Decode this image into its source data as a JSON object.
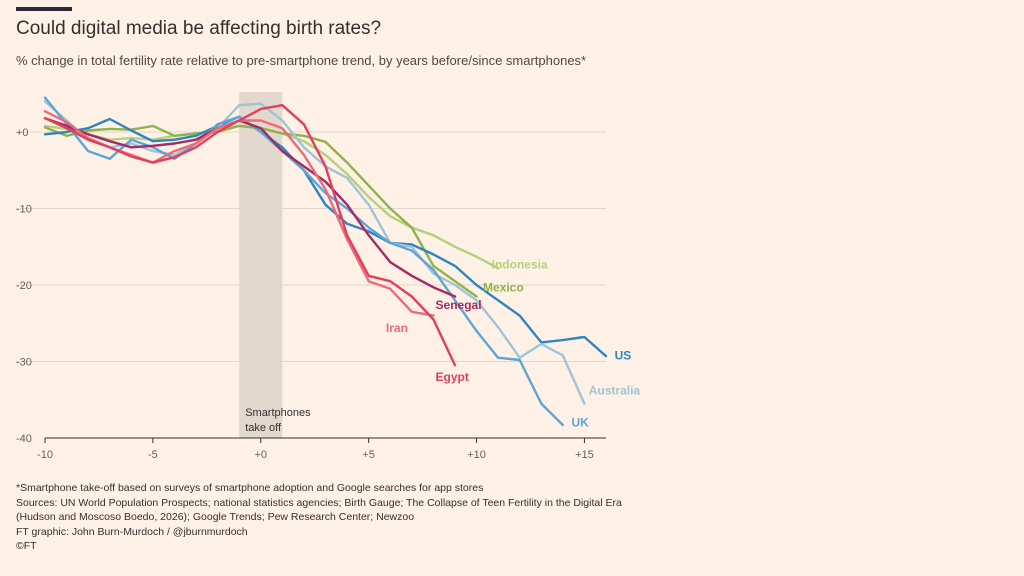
{
  "header": {
    "title": "Could digital media be affecting birth rates?",
    "subtitle": "% change in total fertility rate relative to pre-smartphone trend, by years before/since smartphones*"
  },
  "footer": {
    "note": "*Smartphone take-off based on surveys of smartphone adoption and Google searches for app stores",
    "sources_1": "Sources: UN World Population Prospects; national statistics agencies; Birth Gauge; The Collapse of Teen Fertility in the Digital Era",
    "sources_2": "(Hudson and Moscoso Boedo, 2026); Google Trends; Pew Research Center; Newzoo",
    "credit": "FT graphic: John Burn-Murdoch / @jburnmurdoch",
    "copyright": "©FT"
  },
  "chart_data": {
    "type": "line",
    "title": "Could digital media be affecting birth rates?",
    "subtitle": "% change in total fertility rate relative to pre-smartphone trend, by years before/since smartphones*",
    "xlim": [
      -10,
      16
    ],
    "ylim": [
      -40,
      5
    ],
    "x_ticks": [
      -10,
      -5,
      0,
      5,
      10,
      15
    ],
    "x_tick_labels": [
      "-10",
      "-5",
      "+0",
      "+5",
      "+10",
      "+15"
    ],
    "y_ticks": [
      0,
      -10,
      -20,
      -30,
      -40
    ],
    "y_tick_labels": [
      "+0",
      "-10",
      "-20",
      "-30",
      "-40"
    ],
    "grid": "horizontal",
    "annotation_band": {
      "x_from": -1,
      "x_to": 1,
      "label_lines": [
        "Smartphones",
        "take off"
      ],
      "color": "#e3d8ce"
    },
    "series": [
      {
        "name": "Indonesia",
        "color": "#b5d07a",
        "x": [
          -10,
          -9,
          -8,
          -7,
          -6,
          -5,
          -4,
          -3,
          -2,
          -1,
          0,
          1,
          2,
          3,
          4,
          5,
          6,
          7,
          8,
          9,
          10,
          11
        ],
        "y": [
          0.8,
          0.4,
          -0.3,
          -1.0,
          -0.8,
          -1.0,
          -0.5,
          -0.2,
          0.3,
          0.8,
          0.5,
          -0.2,
          -1.2,
          -3,
          -5.5,
          -8.5,
          -11,
          -12.5,
          -13.5,
          -15,
          -16.3,
          -17.8
        ]
      },
      {
        "name": "Mexico",
        "color": "#8eb348",
        "x": [
          -10,
          -9,
          -8,
          -7,
          -6,
          -5,
          -4,
          -3,
          -2,
          -1,
          0,
          1,
          2,
          3,
          4,
          5,
          6,
          7,
          8,
          9,
          10
        ],
        "y": [
          0.6,
          -0.5,
          0.2,
          0.4,
          0.3,
          0.8,
          -0.5,
          -0.2,
          0,
          0.8,
          0.5,
          -0.2,
          -0.5,
          -1.3,
          -4,
          -7,
          -10,
          -12.5,
          -17.5,
          -19.5,
          -21.5
        ]
      },
      {
        "name": "US",
        "color": "#2e86c1",
        "x": [
          -10,
          -9,
          -8,
          -7,
          -6,
          -5,
          -4,
          -3,
          -2,
          -1,
          0,
          1,
          2,
          3,
          4,
          5,
          6,
          7,
          8,
          9,
          10,
          11,
          12,
          13,
          14,
          15,
          16
        ],
        "y": [
          -0.3,
          0,
          0.5,
          1.7,
          0.2,
          -1.2,
          -1,
          -0.5,
          0.8,
          2,
          0,
          -2,
          -5,
          -9.5,
          -12,
          -13,
          -14.5,
          -14.7,
          -16,
          -17.5,
          -20,
          -22,
          -24,
          -27.5,
          -27.2,
          -26.8,
          -29.3
        ]
      },
      {
        "name": "Australia",
        "color": "#9ec5d7",
        "x": [
          -10,
          -9,
          -8,
          -7,
          -6,
          -5,
          -4,
          -3,
          -2,
          -1,
          0,
          1,
          2,
          3,
          4,
          5,
          6,
          7,
          8,
          9,
          10,
          11,
          12,
          13,
          14,
          15
        ],
        "y": [
          4,
          1.5,
          -1,
          -2,
          -1.5,
          -2.5,
          -3,
          -1.5,
          0.5,
          3.5,
          3.7,
          1.5,
          -2,
          -4.5,
          -6,
          -9.5,
          -14.5,
          -15,
          -18.5,
          -20,
          -22,
          -25.5,
          -29.5,
          -27.7,
          -29.2,
          -35.5
        ]
      },
      {
        "name": "UK",
        "color": "#5ba5d8",
        "x": [
          -10,
          -9,
          -8,
          -7,
          -6,
          -5,
          -4,
          -3,
          -2,
          -1,
          0,
          1,
          2,
          3,
          4,
          5,
          6,
          7,
          8,
          9,
          10,
          11,
          12,
          13,
          14
        ],
        "y": [
          4.5,
          1,
          -2.5,
          -3.5,
          -1,
          -2,
          -3.5,
          -1.5,
          1,
          2,
          0,
          -2.5,
          -5,
          -8,
          -10,
          -12.5,
          -14.5,
          -15.5,
          -18,
          -22,
          -26,
          -29.5,
          -29.8,
          -35.5,
          -38.3
        ]
      },
      {
        "name": "Senegal",
        "color": "#a62a62",
        "x": [
          -10,
          -9,
          -8,
          -7,
          -6,
          -5,
          -4,
          -3,
          -2,
          -1,
          0,
          1,
          2,
          3,
          4,
          5,
          6,
          7,
          8,
          9
        ],
        "y": [
          1.8,
          0.8,
          -0.3,
          -1.2,
          -2,
          -1.8,
          -1.5,
          -1,
          0.5,
          1.5,
          0.5,
          -2.5,
          -4.5,
          -6.5,
          -9.5,
          -13.5,
          -17,
          -18.8,
          -20.3,
          -21.5
        ]
      },
      {
        "name": "Iran",
        "color": "#ec6b78",
        "x": [
          -10,
          -9,
          -8,
          -7,
          -6,
          -5,
          -4,
          -3,
          -2,
          -1,
          0,
          1,
          2,
          3,
          4,
          5,
          6,
          7,
          8
        ],
        "y": [
          2.7,
          1.3,
          -0.8,
          -2,
          -3,
          -4,
          -2.5,
          -1.5,
          0.5,
          1.5,
          1.5,
          0.5,
          -3,
          -7.5,
          -14,
          -19.5,
          -20.5,
          -23.5,
          -24
        ]
      },
      {
        "name": "Egypt",
        "color": "#e0405c",
        "x": [
          -10,
          -9,
          -8,
          -7,
          -6,
          -5,
          -4,
          -3,
          -2,
          -1,
          0,
          1,
          2,
          3,
          4,
          5,
          6,
          7,
          8,
          9
        ],
        "y": [
          1.8,
          0.5,
          -1,
          -2,
          -3.2,
          -4,
          -3.3,
          -2,
          0,
          1.5,
          3,
          3.5,
          1,
          -4.5,
          -13.5,
          -18.8,
          -19.5,
          -21.5,
          -24.5,
          -30.5
        ]
      }
    ],
    "labels": [
      {
        "series": "Indonesia",
        "text": "Indonesia",
        "x": 10.7,
        "y": -17.3,
        "color": "#b5d07a"
      },
      {
        "series": "Mexico",
        "text": "Mexico",
        "x": 10.3,
        "y": -20.3,
        "color": "#8eb348"
      },
      {
        "series": "US",
        "text": "US",
        "x": 16.4,
        "y": -29.2,
        "color": "#2e86c1"
      },
      {
        "series": "Australia",
        "text": "Australia",
        "x": 15.2,
        "y": -33.8,
        "color": "#9ec5d7"
      },
      {
        "series": "UK",
        "text": "UK",
        "x": 14.4,
        "y": -38.0,
        "color": "#5ba5d8"
      },
      {
        "series": "Senegal",
        "text": "Senegal",
        "x": 8.1,
        "y": -22.6,
        "color": "#a62a62"
      },
      {
        "series": "Iran",
        "text": "Iran",
        "x": 5.8,
        "y": -25.6,
        "color": "#ec6b78"
      },
      {
        "series": "Egypt",
        "text": "Egypt",
        "x": 8.1,
        "y": -32.0,
        "color": "#e0405c"
      }
    ]
  }
}
